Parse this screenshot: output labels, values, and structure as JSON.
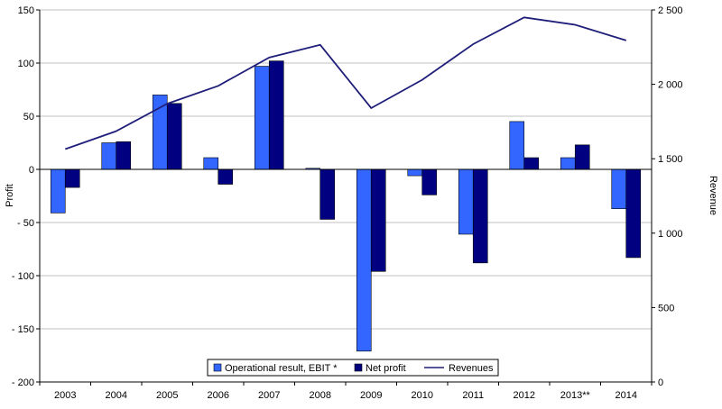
{
  "chart_data": {
    "type": "bar",
    "title": "",
    "xlabel": "",
    "ylabel": "Profit",
    "y2label": "Revenue",
    "categories": [
      "2003",
      "2004",
      "2005",
      "2006",
      "2007",
      "2008",
      "2009",
      "2010",
      "2011",
      "2012",
      "2013**",
      "2014"
    ],
    "ylim": [
      -200,
      150
    ],
    "yticks": [
      -200,
      -150,
      -100,
      -50,
      0,
      50,
      100,
      150
    ],
    "ytick_labels": [
      "- 200",
      "- 150",
      "- 100",
      "- 50",
      "0",
      "50",
      "100",
      "150"
    ],
    "y2lim": [
      0,
      2500
    ],
    "y2ticks": [
      0,
      500,
      1000,
      1500,
      2000,
      2500
    ],
    "y2tick_labels": [
      "0",
      "500",
      "1 000",
      "1 500",
      "2 000",
      "2 500"
    ],
    "grid": true,
    "legend_position": "bottom-center",
    "series": [
      {
        "name": "Operational result, EBIT *",
        "type": "bar",
        "axis": "left",
        "color": "#3366ff",
        "values": [
          -41,
          25,
          70,
          11,
          97,
          1,
          -171,
          -6,
          -61,
          45,
          11,
          -37
        ]
      },
      {
        "name": "Net profit",
        "type": "bar",
        "axis": "left",
        "color": "#000080",
        "values": [
          -17,
          26,
          62,
          -14,
          102,
          -47,
          -96,
          -24,
          -88,
          11,
          23,
          -83
        ]
      },
      {
        "name": "Revenues",
        "type": "line",
        "axis": "right",
        "color": "#1f1f7a",
        "values": [
          1565,
          1685,
          1870,
          1990,
          2180,
          2265,
          1840,
          2030,
          2270,
          2450,
          2400,
          2295
        ]
      }
    ]
  }
}
